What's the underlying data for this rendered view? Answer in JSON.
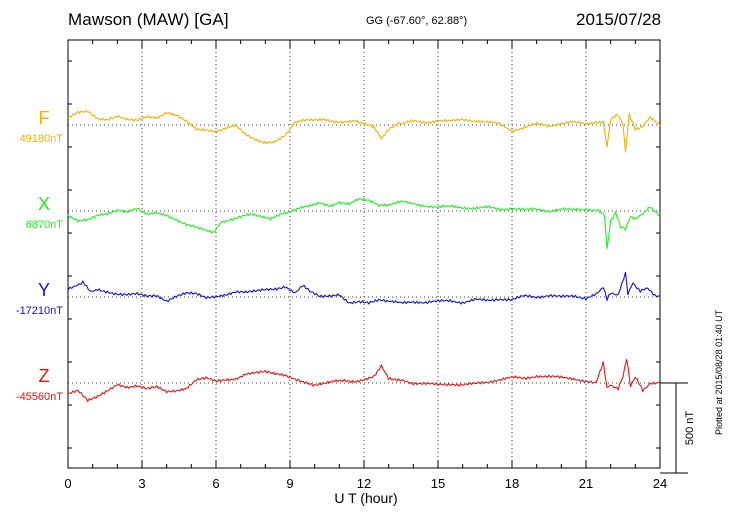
{
  "header": {
    "title": "Mawson (MAW)  [GA]",
    "coords": "GG (-67.60°,  62.88°)",
    "date": "2015/07/28",
    "plotted": "Plotted at 2015/08/28 01:40 UT"
  },
  "chart_data": {
    "type": "line",
    "xlabel": "U T (hour)",
    "xlim": [
      0,
      24
    ],
    "xticks": [
      0,
      3,
      6,
      9,
      12,
      15,
      18,
      21,
      24
    ],
    "scale_bar": "500 nT",
    "scale_nt": 500,
    "colors": {
      "F": "#f5b000",
      "X": "#22ee22",
      "Y": "#1010dd",
      "Z": "#ee1111"
    },
    "series": [
      {
        "name": "F",
        "baseline_label": "49180nT",
        "baseline_nt": 49180,
        "color": "#f5b000",
        "points": [
          [
            0,
            40
          ],
          [
            0.4,
            75
          ],
          [
            0.8,
            80
          ],
          [
            1.2,
            35
          ],
          [
            1.6,
            25
          ],
          [
            2.0,
            45
          ],
          [
            2.4,
            30
          ],
          [
            2.8,
            30
          ],
          [
            3.2,
            50
          ],
          [
            3.6,
            40
          ],
          [
            4.0,
            65
          ],
          [
            4.4,
            50
          ],
          [
            4.8,
            20
          ],
          [
            5.2,
            -20
          ],
          [
            5.6,
            -25
          ],
          [
            6.0,
            -35
          ],
          [
            6.4,
            -20
          ],
          [
            6.8,
            -5
          ],
          [
            7.2,
            -55
          ],
          [
            7.6,
            -80
          ],
          [
            8.0,
            -95
          ],
          [
            8.4,
            -90
          ],
          [
            8.8,
            -60
          ],
          [
            9.2,
            10
          ],
          [
            9.6,
            25
          ],
          [
            10.0,
            30
          ],
          [
            10.4,
            35
          ],
          [
            10.8,
            20
          ],
          [
            11.2,
            15
          ],
          [
            11.6,
            20
          ],
          [
            12.0,
            5
          ],
          [
            12.4,
            -10
          ],
          [
            12.7,
            -80
          ],
          [
            13.0,
            -20
          ],
          [
            13.4,
            10
          ],
          [
            14.0,
            20
          ],
          [
            14.5,
            15
          ],
          [
            15.0,
            25
          ],
          [
            15.5,
            20
          ],
          [
            16.0,
            30
          ],
          [
            16.5,
            25
          ],
          [
            17.0,
            15
          ],
          [
            17.5,
            5
          ],
          [
            18.0,
            -30
          ],
          [
            18.5,
            -15
          ],
          [
            19.0,
            5
          ],
          [
            19.5,
            -5
          ],
          [
            20.0,
            10
          ],
          [
            20.5,
            15
          ],
          [
            21.0,
            5
          ],
          [
            21.4,
            10
          ],
          [
            21.7,
            20
          ],
          [
            21.85,
            -120
          ],
          [
            22.0,
            30
          ],
          [
            22.3,
            55
          ],
          [
            22.5,
            0
          ],
          [
            22.6,
            -150
          ],
          [
            22.75,
            60
          ],
          [
            23.0,
            -20
          ],
          [
            23.3,
            -10
          ],
          [
            23.6,
            40
          ],
          [
            24,
            -5
          ]
        ]
      },
      {
        "name": "X",
        "baseline_label": "6870nT",
        "baseline_nt": 6870,
        "color": "#22ee22",
        "points": [
          [
            0,
            -30
          ],
          [
            0.4,
            -55
          ],
          [
            0.8,
            -45
          ],
          [
            1.2,
            -20
          ],
          [
            1.6,
            -15
          ],
          [
            2.0,
            0
          ],
          [
            2.4,
            -10
          ],
          [
            2.8,
            15
          ],
          [
            3.2,
            -15
          ],
          [
            3.6,
            -5
          ],
          [
            4.0,
            -25
          ],
          [
            4.4,
            -55
          ],
          [
            4.8,
            -80
          ],
          [
            5.2,
            -90
          ],
          [
            5.6,
            -105
          ],
          [
            5.9,
            -125
          ],
          [
            6.2,
            -60
          ],
          [
            6.6,
            -50
          ],
          [
            7.0,
            -35
          ],
          [
            7.4,
            -20
          ],
          [
            7.8,
            -30
          ],
          [
            8.2,
            -40
          ],
          [
            8.6,
            -15
          ],
          [
            9.0,
            -5
          ],
          [
            9.4,
            15
          ],
          [
            9.8,
            25
          ],
          [
            10.2,
            45
          ],
          [
            10.6,
            30
          ],
          [
            11.0,
            50
          ],
          [
            11.4,
            40
          ],
          [
            11.8,
            65
          ],
          [
            12.2,
            55
          ],
          [
            12.6,
            30
          ],
          [
            13.0,
            35
          ],
          [
            13.5,
            50
          ],
          [
            14.0,
            40
          ],
          [
            14.5,
            30
          ],
          [
            15.0,
            20
          ],
          [
            15.5,
            25
          ],
          [
            16.0,
            20
          ],
          [
            16.5,
            15
          ],
          [
            17.0,
            20
          ],
          [
            17.5,
            10
          ],
          [
            18.0,
            15
          ],
          [
            18.5,
            5
          ],
          [
            19.0,
            10
          ],
          [
            19.5,
            0
          ],
          [
            20.0,
            10
          ],
          [
            20.5,
            5
          ],
          [
            21.0,
            10
          ],
          [
            21.5,
            5
          ],
          [
            21.75,
            -20
          ],
          [
            21.85,
            -215
          ],
          [
            22.0,
            -60
          ],
          [
            22.2,
            -10
          ],
          [
            22.4,
            -90
          ],
          [
            22.6,
            -100
          ],
          [
            22.8,
            -30
          ],
          [
            23.0,
            -40
          ],
          [
            23.3,
            -20
          ],
          [
            23.6,
            25
          ],
          [
            24,
            -30
          ]
        ]
      },
      {
        "name": "Y",
        "baseline_label": "-17210nT",
        "baseline_nt": -17210,
        "color": "#1010dd",
        "points": [
          [
            0,
            40
          ],
          [
            0.3,
            65
          ],
          [
            0.6,
            80
          ],
          [
            0.9,
            30
          ],
          [
            1.2,
            45
          ],
          [
            1.6,
            30
          ],
          [
            2.0,
            15
          ],
          [
            2.4,
            10
          ],
          [
            2.8,
            15
          ],
          [
            3.2,
            5
          ],
          [
            3.6,
            10
          ],
          [
            4.0,
            -20
          ],
          [
            4.4,
            5
          ],
          [
            4.8,
            20
          ],
          [
            5.2,
            15
          ],
          [
            5.6,
            -5
          ],
          [
            6.0,
            5
          ],
          [
            6.4,
            15
          ],
          [
            6.8,
            30
          ],
          [
            7.2,
            25
          ],
          [
            7.6,
            30
          ],
          [
            8.0,
            40
          ],
          [
            8.4,
            45
          ],
          [
            8.8,
            60
          ],
          [
            9.2,
            25
          ],
          [
            9.5,
            65
          ],
          [
            9.8,
            30
          ],
          [
            10.2,
            0
          ],
          [
            10.6,
            5
          ],
          [
            11.0,
            15
          ],
          [
            11.4,
            -30
          ],
          [
            11.8,
            -25
          ],
          [
            12.2,
            -35
          ],
          [
            12.6,
            -20
          ],
          [
            13.0,
            -25
          ],
          [
            13.5,
            -35
          ],
          [
            14.0,
            -25
          ],
          [
            14.5,
            -30
          ],
          [
            15.0,
            -25
          ],
          [
            15.5,
            -20
          ],
          [
            16.0,
            -30
          ],
          [
            16.5,
            -15
          ],
          [
            17.0,
            -20
          ],
          [
            17.5,
            -10
          ],
          [
            18.0,
            -15
          ],
          [
            18.5,
            5
          ],
          [
            19.0,
            0
          ],
          [
            19.5,
            10
          ],
          [
            20.0,
            0
          ],
          [
            20.5,
            5
          ],
          [
            21.0,
            -5
          ],
          [
            21.4,
            20
          ],
          [
            21.7,
            55
          ],
          [
            21.85,
            -15
          ],
          [
            22.0,
            20
          ],
          [
            22.3,
            15
          ],
          [
            22.6,
            130
          ],
          [
            22.7,
            20
          ],
          [
            22.9,
            80
          ],
          [
            23.2,
            35
          ],
          [
            23.5,
            45
          ],
          [
            23.8,
            10
          ],
          [
            24,
            5
          ]
        ]
      },
      {
        "name": "Z",
        "baseline_label": "-45560nT",
        "baseline_nt": -45560,
        "color": "#ee1111",
        "points": [
          [
            0,
            -60
          ],
          [
            0.4,
            -45
          ],
          [
            0.8,
            -100
          ],
          [
            1.2,
            -75
          ],
          [
            1.6,
            -40
          ],
          [
            2.0,
            -5
          ],
          [
            2.4,
            -25
          ],
          [
            2.8,
            -20
          ],
          [
            3.2,
            -35
          ],
          [
            3.6,
            -20
          ],
          [
            4.0,
            -45
          ],
          [
            4.4,
            -40
          ],
          [
            4.8,
            -30
          ],
          [
            5.2,
            15
          ],
          [
            5.6,
            25
          ],
          [
            6.0,
            10
          ],
          [
            6.4,
            20
          ],
          [
            6.8,
            25
          ],
          [
            7.2,
            50
          ],
          [
            7.6,
            55
          ],
          [
            8.0,
            60
          ],
          [
            8.4,
            50
          ],
          [
            8.8,
            45
          ],
          [
            9.2,
            25
          ],
          [
            9.6,
            5
          ],
          [
            10.0,
            -15
          ],
          [
            10.4,
            -5
          ],
          [
            10.8,
            10
          ],
          [
            11.2,
            15
          ],
          [
            11.6,
            10
          ],
          [
            12.0,
            20
          ],
          [
            12.4,
            35
          ],
          [
            12.7,
            100
          ],
          [
            13.0,
            20
          ],
          [
            13.4,
            15
          ],
          [
            14.0,
            0
          ],
          [
            14.5,
            -5
          ],
          [
            15.0,
            -10
          ],
          [
            15.5,
            -5
          ],
          [
            16.0,
            -10
          ],
          [
            16.5,
            -5
          ],
          [
            17.0,
            5
          ],
          [
            17.5,
            20
          ],
          [
            18.0,
            30
          ],
          [
            18.5,
            25
          ],
          [
            19.0,
            40
          ],
          [
            19.5,
            35
          ],
          [
            20.0,
            30
          ],
          [
            20.5,
            25
          ],
          [
            21.0,
            10
          ],
          [
            21.4,
            5
          ],
          [
            21.7,
            110
          ],
          [
            21.85,
            -30
          ],
          [
            22.0,
            -10
          ],
          [
            22.3,
            -30
          ],
          [
            22.5,
            40
          ],
          [
            22.65,
            135
          ],
          [
            22.8,
            -20
          ],
          [
            23.0,
            30
          ],
          [
            23.3,
            -40
          ],
          [
            23.6,
            0
          ],
          [
            24,
            5
          ]
        ]
      }
    ]
  }
}
